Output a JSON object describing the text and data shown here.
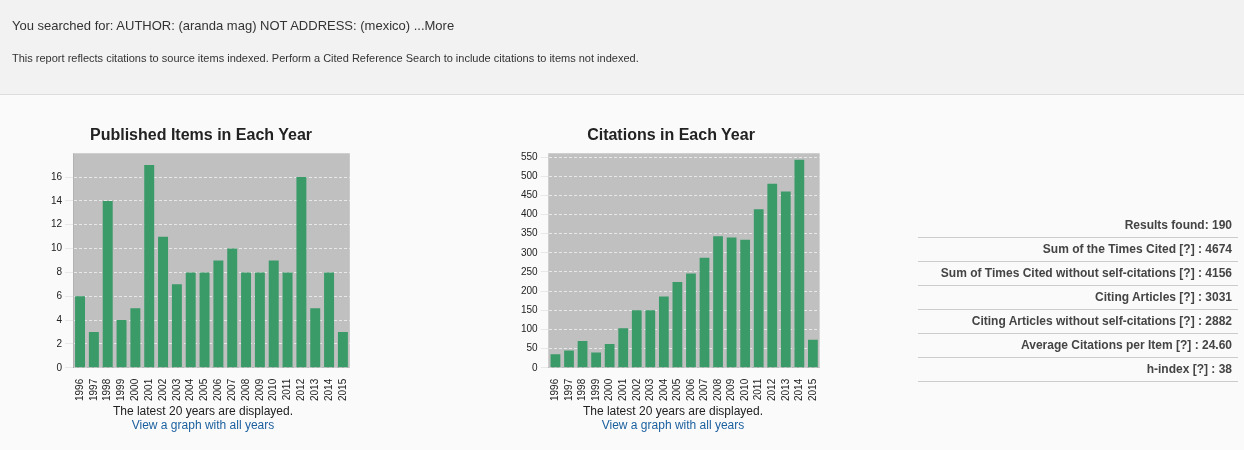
{
  "chart_data": [
    {
      "type": "other",
      "annotations": [
        "You searched for:  AUTHOR: (aranda mag) NOT ADDRESS: (mexico)  ...More",
        "This report reflects citations to source items indexed. Perform a Cited Reference Search to include citations to items not indexed."
      ]
    },
    {
      "type": "bar",
      "title": "Published Items in Each Year",
      "categories": [
        "1996",
        "1997",
        "1998",
        "1999",
        "2000",
        "2001",
        "2002",
        "2003",
        "2004",
        "2005",
        "2006",
        "2007",
        "2008",
        "2009",
        "2010",
        "2011",
        "2012",
        "2013",
        "2014",
        "2015"
      ],
      "values": [
        6,
        3,
        14,
        4,
        5,
        17,
        11,
        7,
        8,
        8,
        9,
        10,
        8,
        8,
        9,
        8,
        16,
        5,
        8,
        3
      ],
      "color": "#3a9a68",
      "ylim": [
        0,
        18
      ],
      "yticks": [
        0,
        2,
        4,
        6,
        8,
        10,
        12,
        14,
        16
      ],
      "grid": "y",
      "annotations": [
        "The latest 20 years are displayed.",
        "View a graph with all years"
      ]
    },
    {
      "type": "bar",
      "title": "Citations in Each Year",
      "categories": [
        "1996",
        "1997",
        "1998",
        "1999",
        "2000",
        "2001",
        "2002",
        "2003",
        "2004",
        "2005",
        "2006",
        "2007",
        "2008",
        "2009",
        "2010",
        "2011",
        "2012",
        "2013",
        "2014",
        "2015"
      ],
      "values": [
        35,
        45,
        70,
        40,
        62,
        103,
        150,
        150,
        186,
        224,
        246,
        287,
        343,
        340,
        334,
        414,
        480,
        460,
        543,
        73
      ],
      "color": "#3a9a68",
      "ylim": [
        0,
        560
      ],
      "yticks": [
        0,
        50,
        100,
        150,
        200,
        250,
        300,
        350,
        400,
        450,
        500,
        550
      ],
      "grid": "y",
      "annotations": [
        "The latest 20 years are displayed.",
        "View a graph with all years"
      ]
    },
    {
      "type": "other",
      "annotations": [
        "Results found:  190",
        "Sum of the Times Cited [?] :  4674",
        "Sum of Times Cited without self-citations [?] :  4156",
        "Citing Articles [?] :  3031",
        "Citing Articles without self-citations [?] :  2882",
        "Average Citations per Item [?] :  24.60",
        "h-index [?] :  38"
      ]
    }
  ]
}
